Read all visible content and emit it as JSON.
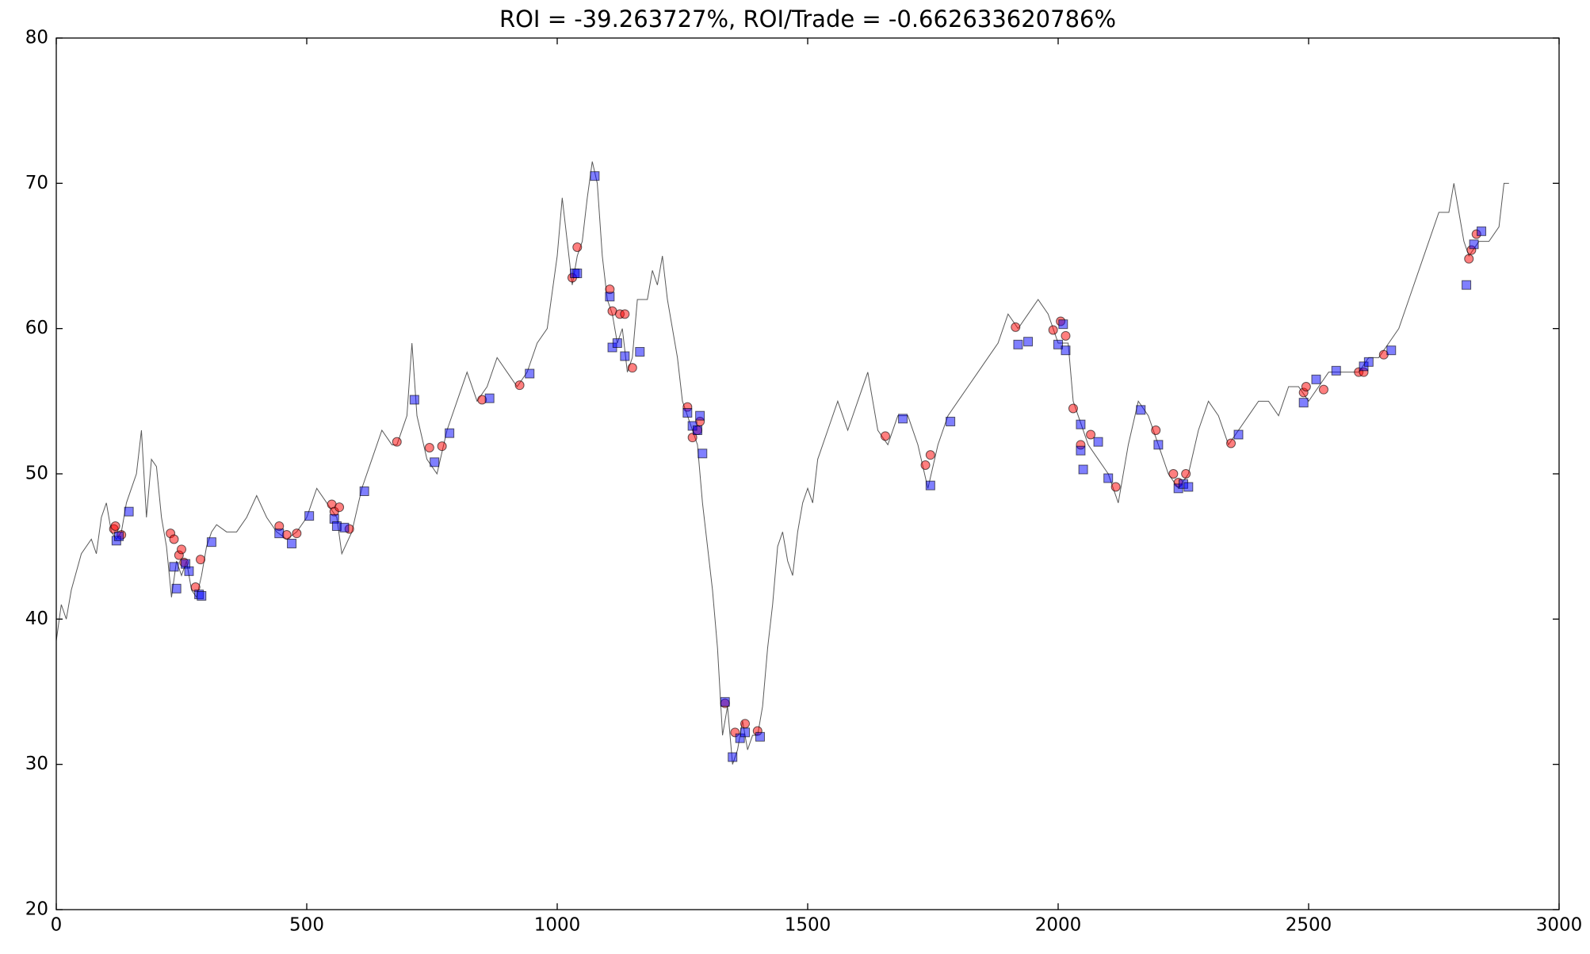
{
  "chart_data": {
    "type": "line",
    "title": "ROI = -39.263727%, ROI/Trade = -0.662633620786%",
    "xlim": [
      0,
      3000
    ],
    "xticks": [
      0,
      500,
      1000,
      1500,
      2000,
      2500,
      3000
    ],
    "ylim": [
      20,
      80
    ],
    "yticks": [
      20,
      30,
      40,
      50,
      60,
      70,
      80
    ],
    "grid": false,
    "series": [
      {
        "type": "line",
        "color": "#000000",
        "x": [
          0,
          10,
          20,
          30,
          50,
          70,
          80,
          90,
          100,
          110,
          120,
          130,
          140,
          150,
          160,
          170,
          180,
          190,
          200,
          210,
          220,
          230,
          240,
          250,
          260,
          270,
          280,
          290,
          300,
          310,
          320,
          340,
          360,
          380,
          400,
          420,
          440,
          460,
          480,
          500,
          520,
          540,
          560,
          570,
          590,
          610,
          630,
          650,
          670,
          680,
          700,
          710,
          720,
          740,
          760,
          780,
          800,
          820,
          840,
          860,
          880,
          900,
          920,
          940,
          960,
          980,
          1000,
          1010,
          1020,
          1030,
          1040,
          1050,
          1060,
          1070,
          1080,
          1090,
          1100,
          1110,
          1120,
          1130,
          1140,
          1150,
          1160,
          1180,
          1190,
          1200,
          1210,
          1220,
          1240,
          1250,
          1260,
          1270,
          1280,
          1290,
          1300,
          1310,
          1320,
          1330,
          1340,
          1350,
          1360,
          1370,
          1380,
          1390,
          1400,
          1410,
          1420,
          1430,
          1440,
          1450,
          1460,
          1470,
          1480,
          1490,
          1500,
          1510,
          1520,
          1540,
          1560,
          1580,
          1600,
          1620,
          1640,
          1660,
          1680,
          1700,
          1720,
          1740,
          1760,
          1780,
          1800,
          1820,
          1840,
          1860,
          1880,
          1900,
          1920,
          1940,
          1960,
          1980,
          2000,
          2020,
          2030,
          2040,
          2060,
          2080,
          2100,
          2120,
          2140,
          2160,
          2180,
          2200,
          2220,
          2240,
          2260,
          2280,
          2300,
          2320,
          2340,
          2360,
          2380,
          2400,
          2420,
          2440,
          2460,
          2480,
          2500,
          2520,
          2540,
          2560,
          2580,
          2600,
          2620,
          2640,
          2660,
          2680,
          2700,
          2720,
          2740,
          2760,
          2780,
          2790,
          2800,
          2810,
          2820,
          2840,
          2860,
          2880,
          2890,
          2900
        ],
        "values": [
          38.5,
          41,
          40,
          42,
          44.5,
          45.5,
          44.5,
          47,
          48,
          46,
          45.5,
          46,
          48,
          49,
          50,
          53,
          47,
          51,
          50.5,
          47,
          45,
          41.5,
          44,
          43,
          44,
          42,
          41.5,
          43,
          45,
          46,
          46.5,
          46,
          46,
          47,
          48.5,
          47,
          46,
          45.5,
          46,
          47,
          49,
          48,
          47,
          44.5,
          46,
          49,
          51,
          53,
          52,
          52,
          54,
          59,
          54,
          51,
          50,
          53,
          55,
          57,
          55,
          56,
          58,
          57,
          56,
          57,
          59,
          60,
          65,
          69,
          66,
          63,
          65,
          66,
          69,
          71.5,
          70,
          65,
          62,
          61,
          59,
          60,
          57,
          58,
          62,
          62,
          64,
          63,
          65,
          62,
          58,
          55,
          54,
          53,
          52,
          48,
          45,
          42,
          38,
          32,
          34,
          30,
          31,
          33,
          31,
          32,
          32,
          34,
          38,
          41,
          45,
          46,
          44,
          43,
          46,
          48,
          49,
          48,
          51,
          53,
          55,
          53,
          55,
          57,
          53,
          52,
          54,
          54,
          52,
          49,
          52,
          54,
          55,
          56,
          57,
          58,
          59,
          61,
          60,
          61,
          62,
          61,
          59,
          59,
          55,
          54,
          52,
          51,
          50,
          48,
          52,
          55,
          54,
          52,
          50,
          49,
          50,
          53,
          55,
          54,
          52,
          53,
          54,
          55,
          55,
          54,
          56,
          56,
          55,
          56,
          57,
          57,
          57,
          57,
          58,
          58,
          59,
          60,
          62,
          64,
          66,
          68,
          68,
          70,
          68,
          66,
          65,
          66,
          66,
          67,
          70,
          70
        ]
      },
      {
        "type": "scatter",
        "marker": "circle",
        "color": "#ff0000",
        "x": [
          115,
          118,
          130,
          228,
          235,
          245,
          250,
          255,
          278,
          288,
          445,
          460,
          480,
          550,
          555,
          565,
          585,
          680,
          745,
          770,
          850,
          925,
          1030,
          1040,
          1105,
          1110,
          1125,
          1135,
          1150,
          1260,
          1270,
          1280,
          1285,
          1335,
          1355,
          1375,
          1400,
          1655,
          1735,
          1745,
          1915,
          1990,
          2005,
          2015,
          2030,
          2045,
          2065,
          2115,
          2195,
          2230,
          2240,
          2255,
          2345,
          2490,
          2495,
          2530,
          2600,
          2610,
          2650,
          2820,
          2825,
          2835
        ],
        "values": [
          46.2,
          46.4,
          45.8,
          45.9,
          45.5,
          44.4,
          44.8,
          43.9,
          42.2,
          44.1,
          46.4,
          45.8,
          45.9,
          47.9,
          47.4,
          47.7,
          46.2,
          52.2,
          51.8,
          51.9,
          55.1,
          56.1,
          63.5,
          65.6,
          62.7,
          61.2,
          61,
          61,
          57.3,
          54.6,
          52.5,
          53,
          53.6,
          34.2,
          32.2,
          32.8,
          32.3,
          52.6,
          50.6,
          51.3,
          60.1,
          59.9,
          60.5,
          59.5,
          54.5,
          52,
          52.7,
          49.1,
          53,
          50,
          49.4,
          50,
          52.1,
          55.6,
          56,
          55.8,
          57,
          57,
          58.2,
          64.8,
          65.4,
          66.5
        ]
      },
      {
        "type": "scatter",
        "marker": "square",
        "color": "#0000ff",
        "x": [
          120,
          125,
          145,
          235,
          240,
          258,
          265,
          285,
          290,
          310,
          445,
          470,
          505,
          555,
          560,
          575,
          615,
          715,
          755,
          785,
          865,
          945,
          1035,
          1040,
          1075,
          1105,
          1110,
          1120,
          1135,
          1165,
          1260,
          1270,
          1280,
          1285,
          1290,
          1335,
          1350,
          1365,
          1375,
          1405,
          1690,
          1745,
          1785,
          1920,
          1940,
          2000,
          2015,
          2010,
          2045,
          2045,
          2050,
          2080,
          2100,
          2165,
          2200,
          2240,
          2250,
          2260,
          2360,
          2490,
          2515,
          2555,
          2610,
          2620,
          2665,
          2815,
          2830,
          2845
        ],
        "values": [
          45.4,
          45.7,
          47.4,
          43.6,
          42.1,
          43.8,
          43.3,
          41.7,
          41.6,
          45.3,
          45.9,
          45.2,
          47.1,
          46.9,
          46.4,
          46.3,
          48.8,
          55.1,
          50.8,
          52.8,
          55.2,
          56.9,
          63.8,
          63.8,
          70.5,
          62.2,
          58.7,
          59,
          58.1,
          58.4,
          54.2,
          53.3,
          53,
          54,
          51.4,
          34.3,
          30.5,
          31.8,
          32.2,
          31.9,
          53.8,
          49.2,
          53.6,
          58.9,
          59.1,
          58.9,
          58.5,
          60.3,
          53.4,
          51.6,
          50.3,
          52.2,
          49.7,
          54.4,
          52,
          49,
          49.3,
          49.1,
          52.7,
          54.9,
          56.5,
          57.1,
          57.4,
          57.7,
          58.5,
          63,
          65.8,
          66.7
        ]
      }
    ]
  }
}
